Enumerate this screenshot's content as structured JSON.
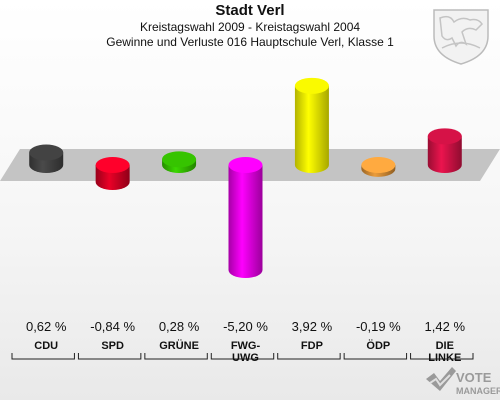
{
  "header": {
    "title": "Stadt Verl",
    "subtitle": "Kreistagswahl 2009 - Kreistagswahl 2004",
    "subtitle2": "Gewinne und Verluste 016 Hauptschule Verl, Klasse 1"
  },
  "chart_data": {
    "type": "bar",
    "title": "Stadt Verl",
    "subtitle": "Kreistagswahl 2009 - Kreistagswahl 2004 / Gewinne und Verluste 016 Hauptschule Verl, Klasse 1",
    "categories": [
      "CDU",
      "SPD",
      "GRÜNE",
      "FWG-UWG",
      "FDP",
      "ÖDP",
      "DIE LINKE"
    ],
    "category_lines": [
      [
        "CDU"
      ],
      [
        "SPD"
      ],
      [
        "GRÜNE"
      ],
      [
        "FWG-",
        "UWG"
      ],
      [
        "FDP"
      ],
      [
        "ÖDP"
      ],
      [
        "DIE",
        "LINKE"
      ]
    ],
    "values": [
      0.62,
      -0.84,
      0.28,
      -5.2,
      3.92,
      -0.19,
      1.42
    ],
    "value_labels": [
      "0,62 %",
      "-0,84 %",
      "0,28 %",
      "-5,20 %",
      "3,92 %",
      "-0,19 %",
      "1,42 %"
    ],
    "colors": [
      "#404040",
      "#cc0022",
      "#33bb00",
      "#dd00dd",
      "#eeee00",
      "#cc8833",
      "#cc1144"
    ],
    "ylim": [
      -5.2,
      3.92
    ],
    "grid": false,
    "legend": "none"
  },
  "branding": {
    "logo_name": "VOTE MANAGER",
    "logo_line1": "VOTE",
    "logo_line2": "MANAGER",
    "crest_icon": "nrw-coat-of-arms-icon"
  }
}
